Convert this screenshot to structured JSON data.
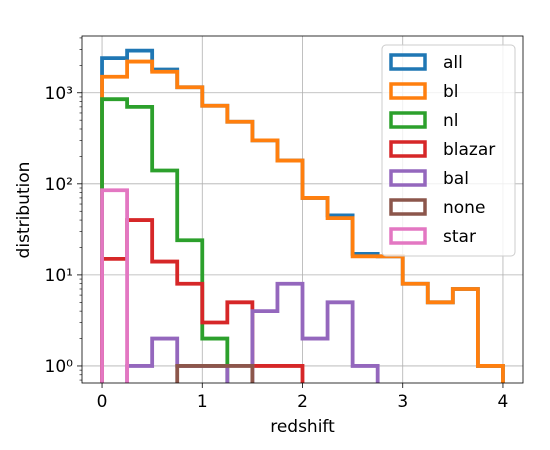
{
  "chart_data": {
    "type": "histogram-step",
    "xlabel": "redshift",
    "ylabel": "distribution",
    "xscale": "linear",
    "yscale": "log",
    "xlim": [
      -0.2,
      4.2
    ],
    "ylim": [
      0.65,
      4200
    ],
    "grid": true,
    "legend_position": "top-right",
    "x_ticks": [
      0,
      1,
      2,
      3,
      4
    ],
    "x_tick_labels": [
      "0",
      "1",
      "2",
      "3",
      "4"
    ],
    "y_ticks": [
      1,
      10,
      100,
      1000
    ],
    "y_tick_labels": [
      "10⁰",
      "10¹",
      "10²",
      "10³"
    ],
    "bin_edges": [
      0,
      0.25,
      0.5,
      0.75,
      1.0,
      1.25,
      1.5,
      1.75,
      2.0,
      2.25,
      2.5,
      2.75,
      3.0,
      3.25,
      3.5,
      3.75,
      4.0
    ],
    "series": [
      {
        "name": "all",
        "color": "#1f77b4",
        "counts": [
          2400,
          2900,
          1800,
          1150,
          720,
          480,
          300,
          180,
          70,
          45,
          17,
          16,
          8,
          5,
          7,
          1
        ]
      },
      {
        "name": "bl",
        "color": "#ff7f0e",
        "counts": [
          1500,
          2200,
          1700,
          1150,
          720,
          480,
          300,
          180,
          70,
          42,
          16,
          16,
          8,
          5,
          7,
          1
        ]
      },
      {
        "name": "nl",
        "color": "#2ca02c",
        "counts": [
          850,
          700,
          140,
          24,
          2,
          0,
          0,
          0,
          0,
          0,
          0,
          0,
          0,
          0,
          0,
          0
        ]
      },
      {
        "name": "blazar",
        "color": "#d62728",
        "counts": [
          15,
          40,
          14,
          8,
          3,
          5,
          1,
          1,
          0,
          0,
          0,
          0,
          0,
          0,
          0,
          0
        ]
      },
      {
        "name": "bal",
        "color": "#9467bd",
        "counts": [
          0,
          1,
          2,
          1,
          1,
          0,
          4,
          8,
          2,
          5,
          1,
          0,
          0,
          0,
          0,
          0
        ]
      },
      {
        "name": "none",
        "color": "#8c564b",
        "counts": [
          0,
          0,
          0,
          1,
          1,
          1,
          0,
          0,
          0,
          0,
          0,
          0,
          0,
          0,
          0,
          0
        ]
      },
      {
        "name": "star",
        "color": "#e377c2",
        "counts": [
          85,
          0,
          0,
          0,
          0,
          0,
          0,
          0,
          0,
          0,
          0,
          0,
          0,
          0,
          0,
          0
        ]
      }
    ]
  }
}
